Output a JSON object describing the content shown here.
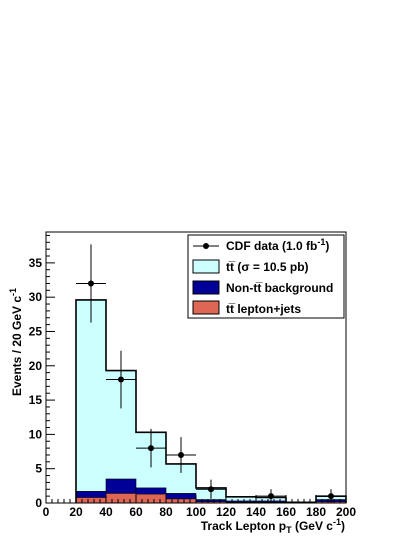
{
  "chart_data": {
    "type": "bar",
    "xlabel": "Track Lepton p",
    "xlabel_sub": "T",
    "xlabel_unit": " (GeV c",
    "xlabel_unit_sup": "-1",
    "xlabel_unit_end": ")",
    "ylabel": "Events / 20 GeV c",
    "ylabel_sup": "-1",
    "xlim": [
      0,
      200
    ],
    "ylim": [
      0,
      39.5
    ],
    "x_ticks": [
      0,
      20,
      40,
      60,
      80,
      100,
      120,
      140,
      160,
      180,
      200
    ],
    "y_ticks": [
      0,
      5,
      10,
      15,
      20,
      25,
      30,
      35
    ],
    "bin_edges": [
      20,
      40,
      60,
      80,
      100,
      120,
      140,
      160,
      180,
      200
    ],
    "series": [
      {
        "name": "tt̅ (σ = 10.5 pb)",
        "kind": "stack-total",
        "color": "#ccffff",
        "values": [
          29.6,
          19.3,
          10.3,
          5.7,
          2.2,
          0.9,
          0.8,
          0.1,
          1.0
        ]
      },
      {
        "name": "Non-tt̅ background",
        "kind": "stack",
        "color": "#000099",
        "values": [
          1.7,
          3.5,
          2.2,
          1.4,
          0.5,
          0.3,
          0.3,
          0.05,
          0.5
        ]
      },
      {
        "name": "tt̅ lepton+jets",
        "kind": "stack",
        "color": "#dd6655",
        "values": [
          0.8,
          1.4,
          1.3,
          0.6,
          0.2,
          0.1,
          0.1,
          0.0,
          0.2
        ]
      }
    ],
    "data_points": {
      "name": "CDF data (1.0 fb",
      "name_sup": "-1",
      "name_end": ")",
      "x": [
        30,
        50,
        70,
        90,
        110,
        150,
        190
      ],
      "y": [
        32,
        18,
        8,
        7,
        2,
        1,
        1
      ],
      "yerr_up": [
        5.7,
        4.2,
        2.8,
        2.6,
        1.4,
        1.0,
        1.0
      ],
      "yerr_down": [
        5.7,
        4.2,
        2.8,
        2.6,
        1.4,
        1.0,
        1.0
      ]
    },
    "legend_placement": "top-right"
  }
}
